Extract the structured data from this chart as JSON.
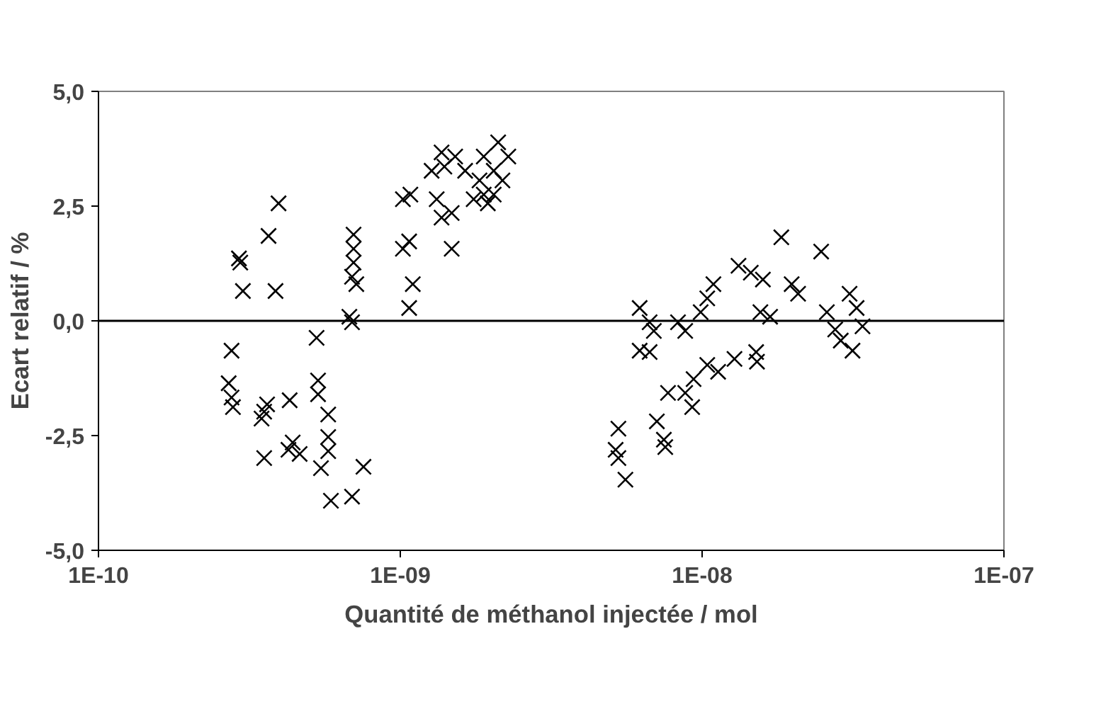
{
  "chart_data": {
    "type": "scatter",
    "xlabel": "Quantité de méthanol injectée / mol",
    "ylabel": "Ecart relatif / %",
    "log": "x",
    "marker": "cross",
    "grid": false,
    "xlim": [
      1e-10,
      1e-07
    ],
    "xticks": [
      {
        "value": 1e-10,
        "label": "1E-10"
      },
      {
        "value": 1e-09,
        "label": "1E-09"
      },
      {
        "value": 1e-08,
        "label": "1E-08"
      },
      {
        "value": 1e-07,
        "label": "1E-07"
      }
    ],
    "ylim": [
      -5,
      5
    ],
    "yticks": [
      {
        "value": -5,
        "label": "-5,0"
      },
      {
        "value": -2.5,
        "label": "-2,5"
      },
      {
        "value": 0,
        "label": "0,0"
      },
      {
        "value": 2.5,
        "label": "2,5"
      },
      {
        "value": 5,
        "label": "5,0"
      }
    ],
    "ref_lines": [
      {
        "axis": "y",
        "value": 0,
        "label": null,
        "color": "#000000"
      }
    ],
    "series": [
      {
        "color": "#000000",
        "x": [
          3.95e-10,
          3.66e-10,
          2.92e-10,
          2.95e-10,
          3.01e-10,
          3.86e-10,
          7e-10,
          7e-10,
          7e-10,
          6.92e-10,
          7.15e-10,
          6.78e-10,
          6.92e-10,
          5.28e-10,
          2.76e-10,
          2.7e-10,
          2.76e-10,
          2.79e-10,
          3.54e-10,
          3.47e-10,
          4.3e-10,
          5.34e-10,
          5.34e-10,
          5.77e-10,
          4.4e-10,
          4.26e-10,
          3.54e-10,
          5.77e-10,
          5.77e-10,
          5.46e-10,
          7.55e-10,
          5.89e-10,
          6.92e-10,
          4.64e-10,
          3.62e-10,
          1.08e-09,
          1.02e-09,
          1.07e-09,
          1.02e-09,
          1.1e-09,
          1.07e-09,
          1.48e-09,
          1.37e-09,
          1.48e-09,
          1.32e-09,
          1.4e-09,
          1.37e-09,
          1.52e-09,
          1.27e-09,
          1.64e-09,
          1.83e-09,
          1.89e-09,
          1.95e-09,
          2.04e-09,
          2.11e-09,
          2.18e-09,
          1.89e-09,
          2.28e-09,
          2.04e-09,
          1.75e-09,
          1.83e-08,
          2.48e-08,
          5.28e-09,
          5.17e-09,
          5.28e-09,
          5.57e-09,
          7.08e-09,
          7.47e-09,
          7.55e-09,
          7.71e-09,
          8.79e-09,
          9.27e-09,
          9.37e-09,
          1.04e-08,
          1.13e-08,
          1.28e-08,
          1.51e-08,
          1.52e-08,
          6.21e-09,
          6.7e-09,
          6.92e-09,
          6.21e-09,
          6.7e-09,
          8.32e-09,
          8.79e-09,
          9.89e-09,
          1.04e-08,
          1.09e-08,
          1.32e-08,
          1.45e-08,
          1.59e-08,
          1.56e-08,
          1.68e-08,
          1.98e-08,
          2.08e-08,
          2.59e-08,
          2.76e-08,
          2.88e-08,
          3.15e-08,
          3.08e-08,
          3.4e-08,
          3.25e-08
        ],
        "values": [
          2.56,
          1.85,
          1.36,
          1.27,
          0.65,
          0.65,
          1.88,
          1.57,
          1.27,
          0.96,
          0.8,
          0.09,
          -0.03,
          -0.37,
          -0.65,
          -1.36,
          -1.67,
          -1.88,
          -1.98,
          -2.13,
          -1.73,
          -1.3,
          -1.6,
          -2.04,
          -2.65,
          -2.81,
          -2.99,
          -2.53,
          -2.84,
          -3.21,
          -3.18,
          -3.92,
          -3.83,
          -2.9,
          -1.82,
          2.75,
          2.65,
          1.73,
          1.57,
          0.8,
          0.28,
          1.57,
          2.25,
          2.35,
          2.65,
          3.36,
          3.67,
          3.58,
          3.27,
          3.27,
          3.06,
          2.75,
          2.56,
          3.27,
          3.89,
          3.06,
          3.58,
          3.58,
          2.75,
          2.65,
          1.82,
          1.51,
          -2.35,
          -2.81,
          -2.99,
          -3.46,
          -2.19,
          -2.59,
          -2.75,
          -1.57,
          -1.57,
          -1.88,
          -1.27,
          -0.96,
          -1.11,
          -0.83,
          -0.68,
          -0.89,
          0.28,
          -0.03,
          -0.22,
          -0.65,
          -0.68,
          -0.03,
          -0.22,
          0.19,
          0.49,
          0.8,
          1.2,
          1.05,
          0.9,
          0.19,
          0.09,
          0.8,
          0.59,
          0.19,
          -0.19,
          -0.43,
          -0.65,
          0.59,
          -0.12,
          0.28
        ]
      }
    ]
  }
}
